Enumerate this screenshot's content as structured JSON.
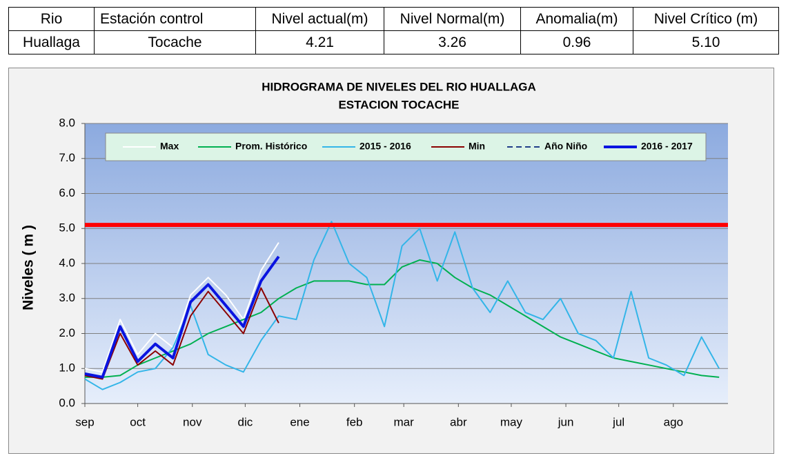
{
  "table": {
    "header": [
      "Rio",
      "Estación control",
      "Nivel actual(m)",
      "Nivel Normal(m)",
      "Anomalia(m)",
      "Nivel Crítico (m)"
    ],
    "rows": [
      [
        "Huallaga",
        "Tocache",
        "4.21",
        "3.26",
        "0.96",
        "5.10"
      ]
    ]
  },
  "chart_data": {
    "type": "line",
    "title": "HIDROGRAMA DE NIVELES DEL RIO HUALLAGA",
    "subtitle": "ESTACION TOCACHE",
    "y_label": "Niveles ( m )",
    "x": [
      0,
      10,
      20,
      30,
      40,
      50,
      60,
      70,
      80,
      90,
      100,
      110,
      120,
      130,
      140,
      150,
      160,
      170,
      180,
      190,
      200,
      210,
      220,
      230,
      240,
      250,
      260,
      270,
      280,
      290,
      300,
      310,
      320,
      330,
      340,
      350,
      360
    ],
    "xlim": [
      0,
      365
    ],
    "xticks": [
      {
        "value": 0,
        "label": "sep"
      },
      {
        "value": 30,
        "label": "oct"
      },
      {
        "value": 61,
        "label": "nov"
      },
      {
        "value": 91,
        "label": "dic"
      },
      {
        "value": 122,
        "label": "ene"
      },
      {
        "value": 153,
        "label": "feb"
      },
      {
        "value": 181,
        "label": "mar"
      },
      {
        "value": 212,
        "label": "abr"
      },
      {
        "value": 242,
        "label": "may"
      },
      {
        "value": 273,
        "label": "jun"
      },
      {
        "value": 303,
        "label": "jul"
      },
      {
        "value": 334,
        "label": "ago"
      }
    ],
    "ylim": [
      0,
      8
    ],
    "yticks": [
      {
        "value": 0,
        "label": "0.0"
      },
      {
        "value": 1,
        "label": "1.0"
      },
      {
        "value": 2,
        "label": "2.0"
      },
      {
        "value": 3,
        "label": "3.0"
      },
      {
        "value": 4,
        "label": "4.0"
      },
      {
        "value": 5,
        "label": "5.0"
      },
      {
        "value": 6,
        "label": "6.0"
      },
      {
        "value": 7,
        "label": "7.0"
      },
      {
        "value": 8,
        "label": "8.0"
      }
    ],
    "grid": true,
    "reference_lines": [
      {
        "value": 5.1,
        "color": "#ff0000"
      }
    ],
    "series": [
      {
        "name": "Max",
        "color": "#ffffff",
        "values": [
          1.0,
          0.9,
          2.4,
          1.4,
          2.0,
          1.6,
          3.1,
          3.6,
          3.1,
          2.4,
          3.8,
          4.6,
          null,
          null,
          null,
          null,
          null,
          null,
          null,
          null,
          null,
          null,
          null,
          null,
          null,
          null,
          null,
          null,
          null,
          null,
          null,
          null,
          null,
          null,
          null,
          null,
          null
        ]
      },
      {
        "name": "Prom. Histórico",
        "color": "#00b050",
        "values": [
          0.75,
          0.75,
          0.8,
          1.1,
          1.3,
          1.5,
          1.7,
          2.0,
          2.2,
          2.4,
          2.6,
          3.0,
          3.3,
          3.5,
          3.5,
          3.5,
          3.4,
          3.4,
          3.9,
          4.1,
          4.0,
          3.6,
          3.3,
          3.1,
          2.8,
          2.5,
          2.2,
          1.9,
          1.7,
          1.5,
          1.3,
          1.2,
          1.1,
          1.0,
          0.9,
          0.8,
          0.75
        ]
      },
      {
        "name": "2015 - 2016",
        "color": "#33b5e8",
        "values": [
          0.7,
          0.4,
          0.6,
          0.9,
          1.0,
          1.6,
          2.8,
          1.4,
          1.1,
          0.9,
          1.8,
          2.5,
          2.4,
          4.1,
          5.2,
          4.0,
          3.6,
          2.2,
          4.5,
          5.0,
          3.5,
          4.9,
          3.3,
          2.6,
          3.5,
          2.6,
          2.4,
          3.0,
          2.0,
          1.8,
          1.3,
          3.2,
          1.3,
          1.1,
          0.8,
          1.9,
          1.0
        ]
      },
      {
        "name": "Min",
        "color": "#8b0000",
        "values": [
          0.8,
          0.7,
          2.0,
          1.1,
          1.5,
          1.1,
          2.5,
          3.2,
          2.6,
          2.0,
          3.3,
          2.3,
          null,
          null,
          null,
          null,
          null,
          null,
          null,
          null,
          null,
          null,
          null,
          null,
          null,
          null,
          null,
          null,
          null,
          null,
          null,
          null,
          null,
          null,
          null,
          null,
          null
        ]
      },
      {
        "name": "Año Niño",
        "color": "#1f3c88",
        "dashed": true,
        "values": [
          null,
          null,
          null,
          null,
          null,
          null,
          null,
          null,
          null,
          null,
          null,
          null,
          null,
          null,
          null,
          null,
          null,
          null,
          null,
          null,
          null,
          null,
          null,
          null,
          null,
          null,
          null,
          null,
          null,
          null,
          null,
          null,
          null,
          null,
          null,
          null,
          null
        ]
      },
      {
        "name": "2016 - 2017",
        "color": "#0a14e0",
        "bold": true,
        "values": [
          0.85,
          0.75,
          2.2,
          1.2,
          1.7,
          1.3,
          2.9,
          3.4,
          2.8,
          2.2,
          3.5,
          4.2,
          null,
          null,
          null,
          null,
          null,
          null,
          null,
          null,
          null,
          null,
          null,
          null,
          null,
          null,
          null,
          null,
          null,
          null,
          null,
          null,
          null,
          null,
          null,
          null,
          null
        ]
      }
    ]
  }
}
